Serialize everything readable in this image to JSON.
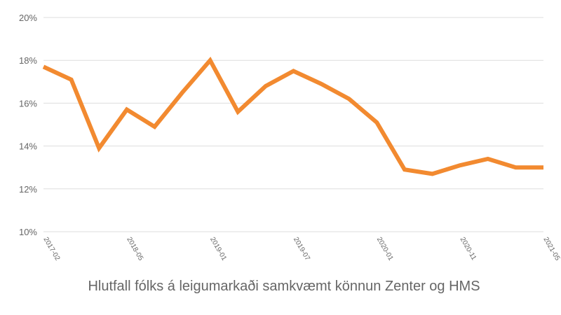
{
  "chart_data": {
    "type": "line",
    "title": "Hlutfall fólks á leigumarkaði samkvæmt könnun Zenter og HMS",
    "categories": [
      "2017-02",
      null,
      null,
      "2018-05",
      null,
      null,
      "2019-01",
      null,
      null,
      "2019-07",
      null,
      null,
      "2020-01",
      null,
      null,
      "2020-11",
      null,
      null,
      "2021-05"
    ],
    "series": [
      {
        "color": "#f28a30",
        "values": [
          17.7,
          17.1,
          13.9,
          15.7,
          14.9,
          16.5,
          18.0,
          15.6,
          16.8,
          17.5,
          16.9,
          16.2,
          15.1,
          12.9,
          12.7,
          13.1,
          13.4,
          13.0,
          13.0
        ]
      }
    ],
    "ylim": [
      10,
      20
    ],
    "yticks": [
      {
        "value": 10,
        "label": "10%"
      },
      {
        "value": 12,
        "label": "12%"
      },
      {
        "value": 14,
        "label": "14%"
      },
      {
        "value": 16,
        "label": "16%"
      },
      {
        "value": 18,
        "label": "18%"
      },
      {
        "value": 20,
        "label": "20%"
      }
    ],
    "grid": true
  }
}
